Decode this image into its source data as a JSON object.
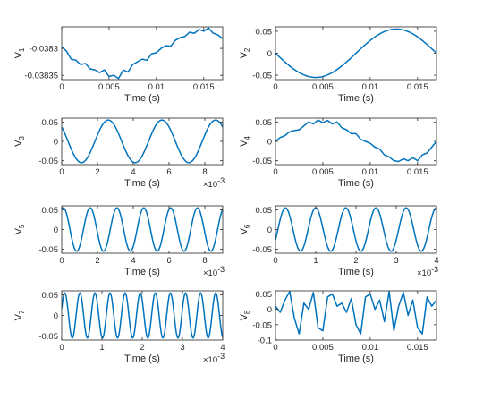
{
  "chart_data": [
    {
      "type": "line",
      "name": "V1",
      "ylabel_main": "V",
      "ylabel_sub": "1",
      "xlabel": "Time (s)",
      "xlim": [
        0,
        0.017
      ],
      "ylim": [
        -0.038358,
        -0.03826
      ],
      "xticks": [
        0,
        0.005,
        0.01,
        0.015
      ],
      "xtick_labels": [
        "0",
        "0.005",
        "0.01",
        "0.015"
      ],
      "yticks": [
        -0.0383,
        -0.03835
      ],
      "ytick_labels": [
        "-0.0383",
        "-0.03835"
      ],
      "x_exponent": "",
      "x": [
        0,
        0.0005,
        0.001,
        0.0015,
        0.002,
        0.0025,
        0.003,
        0.0035,
        0.004,
        0.0045,
        0.005,
        0.0055,
        0.006,
        0.0065,
        0.007,
        0.0075,
        0.008,
        0.0085,
        0.009,
        0.0095,
        0.01,
        0.0105,
        0.011,
        0.0115,
        0.012,
        0.0125,
        0.013,
        0.0135,
        0.014,
        0.0145,
        0.015,
        0.0155,
        0.016,
        0.0165,
        0.017
      ],
      "y": [
        -0.038297,
        -0.038305,
        -0.03832,
        -0.038322,
        -0.03833,
        -0.038328,
        -0.038338,
        -0.03834,
        -0.038345,
        -0.03834,
        -0.038352,
        -0.03835,
        -0.038356,
        -0.03834,
        -0.038344,
        -0.03833,
        -0.038325,
        -0.03832,
        -0.038322,
        -0.03831,
        -0.038308,
        -0.0383,
        -0.038295,
        -0.038296,
        -0.038285,
        -0.03828,
        -0.038278,
        -0.03827,
        -0.038272,
        -0.038265,
        -0.038268,
        -0.038262,
        -0.038272,
        -0.038275,
        -0.038282
      ]
    },
    {
      "type": "line",
      "name": "V2",
      "ylabel_main": "V",
      "ylabel_sub": "2",
      "xlabel": "Time (s)",
      "xlim": [
        0,
        0.017
      ],
      "ylim": [
        -0.06,
        0.06
      ],
      "xticks": [
        0,
        0.005,
        0.01,
        0.015
      ],
      "xtick_labels": [
        "0",
        "0.005",
        "0.01",
        "0.015"
      ],
      "yticks": [
        0.05,
        0,
        -0.05
      ],
      "ytick_labels": [
        "0.05",
        "0",
        "-0.05"
      ],
      "x_exponent": "",
      "func": {
        "amp": 0.055,
        "period": 0.017,
        "phase": 3.14159,
        "offset": 0
      }
    },
    {
      "type": "line",
      "name": "V3",
      "ylabel_main": "V",
      "ylabel_sub": "3",
      "xlabel": "Time (s)",
      "xlim": [
        0,
        9
      ],
      "ylim": [
        -0.06,
        0.06
      ],
      "xticks": [
        0,
        2,
        4,
        6,
        8
      ],
      "xtick_labels": [
        "0",
        "2",
        "4",
        "6",
        "8"
      ],
      "yticks": [
        0.05,
        0,
        -0.05
      ],
      "ytick_labels": [
        "0.05",
        "0",
        "-0.05"
      ],
      "x_exponent": "-3",
      "func": {
        "amp": 0.055,
        "period": 3.0,
        "phase": 2.4,
        "offset": 0
      }
    },
    {
      "type": "line",
      "name": "V4",
      "ylabel_main": "V",
      "ylabel_sub": "4",
      "xlabel": "Time (s)",
      "xlim": [
        0,
        0.017
      ],
      "ylim": [
        -0.06,
        0.06
      ],
      "xticks": [
        0,
        0.005,
        0.01,
        0.015
      ],
      "xtick_labels": [
        "0",
        "0.005",
        "0.01",
        "0.015"
      ],
      "yticks": [
        0.05,
        0,
        -0.05
      ],
      "ytick_labels": [
        "0.05",
        "0",
        "-0.05"
      ],
      "x_exponent": "",
      "x": [
        0,
        0.0005,
        0.001,
        0.0015,
        0.002,
        0.0025,
        0.003,
        0.0035,
        0.004,
        0.0045,
        0.005,
        0.0055,
        0.006,
        0.0065,
        0.007,
        0.0075,
        0.008,
        0.0085,
        0.009,
        0.0095,
        0.01,
        0.0105,
        0.011,
        0.0115,
        0.012,
        0.0125,
        0.013,
        0.0135,
        0.014,
        0.0145,
        0.015,
        0.0155,
        0.016,
        0.0165,
        0.017
      ],
      "y": [
        0.0,
        0.01,
        0.015,
        0.025,
        0.028,
        0.03,
        0.04,
        0.05,
        0.045,
        0.055,
        0.048,
        0.054,
        0.045,
        0.05,
        0.035,
        0.03,
        0.02,
        0.02,
        0.005,
        0.0,
        -0.005,
        -0.015,
        -0.02,
        -0.035,
        -0.04,
        -0.05,
        -0.052,
        -0.045,
        -0.05,
        -0.042,
        -0.05,
        -0.035,
        -0.03,
        -0.015,
        0.0
      ]
    },
    {
      "type": "line",
      "name": "V5",
      "ylabel_main": "V",
      "ylabel_sub": "5",
      "xlabel": "Time (s)",
      "xlim": [
        0,
        9
      ],
      "ylim": [
        -0.06,
        0.06
      ],
      "xticks": [
        0,
        2,
        4,
        6,
        8
      ],
      "xtick_labels": [
        "0",
        "2",
        "4",
        "6",
        "8"
      ],
      "yticks": [
        0.05,
        0,
        -0.05
      ],
      "ytick_labels": [
        "0.05",
        "0",
        "-0.05"
      ],
      "x_exponent": "-3",
      "func": {
        "amp": 0.055,
        "period": 1.5,
        "phase": 1.2,
        "offset": 0
      }
    },
    {
      "type": "line",
      "name": "V6",
      "ylabel_main": "V",
      "ylabel_sub": "6",
      "xlabel": "Time (s)",
      "xlim": [
        0,
        4
      ],
      "ylim": [
        -0.06,
        0.06
      ],
      "xticks": [
        0,
        1,
        2,
        3,
        4
      ],
      "xtick_labels": [
        "0",
        "1",
        "2",
        "3",
        "4"
      ],
      "yticks": [
        0.05,
        0,
        -0.05
      ],
      "ytick_labels": [
        "0.05",
        "0",
        "-0.05"
      ],
      "x_exponent": "-3",
      "func": {
        "amp": 0.055,
        "period": 0.75,
        "phase": -0.5,
        "offset": 0
      }
    },
    {
      "type": "line",
      "name": "V7",
      "ylabel_main": "V",
      "ylabel_sub": "7",
      "xlabel": "Time (s)",
      "xlim": [
        0,
        4
      ],
      "ylim": [
        -0.06,
        0.06
      ],
      "xticks": [
        0,
        1,
        2,
        3,
        4
      ],
      "xtick_labels": [
        "0",
        "1",
        "2",
        "3",
        "4"
      ],
      "yticks": [
        0.05,
        0,
        -0.05
      ],
      "ytick_labels": [
        "0.05",
        "0",
        "-0.05"
      ],
      "x_exponent": "-3",
      "func": {
        "amp": 0.055,
        "period": 0.375,
        "phase": 0.3,
        "offset": 0
      }
    },
    {
      "type": "line",
      "name": "V8",
      "ylabel_main": "V",
      "ylabel_sub": "8",
      "xlabel": "Time (s)",
      "xlim": [
        0,
        0.017
      ],
      "ylim": [
        -0.1,
        0.06
      ],
      "xticks": [
        0,
        0.005,
        0.01,
        0.015
      ],
      "xtick_labels": [
        "0",
        "0.005",
        "0.01",
        "0.015"
      ],
      "yticks": [
        0.05,
        0,
        -0.05,
        -0.1
      ],
      "ytick_labels": [
        "0.05",
        "0",
        "-0.05",
        "-0.1"
      ],
      "x_exponent": "",
      "x": [
        0,
        0.0005,
        0.001,
        0.0015,
        0.002,
        0.0025,
        0.003,
        0.0035,
        0.004,
        0.0045,
        0.005,
        0.0055,
        0.006,
        0.0065,
        0.007,
        0.0075,
        0.008,
        0.0085,
        0.009,
        0.0095,
        0.01,
        0.0105,
        0.011,
        0.0115,
        0.012,
        0.0125,
        0.013,
        0.0135,
        0.014,
        0.0145,
        0.015,
        0.0155,
        0.016,
        0.0165,
        0.017
      ],
      "y": [
        0.01,
        -0.01,
        0.03,
        0.058,
        -0.03,
        -0.08,
        0.02,
        0.0,
        0.055,
        -0.06,
        -0.07,
        0.04,
        0.05,
        0.01,
        0.02,
        -0.01,
        0.035,
        -0.05,
        -0.08,
        0.04,
        0.05,
        0.0,
        0.03,
        -0.04,
        0.058,
        -0.07,
        0.01,
        0.055,
        -0.02,
        0.03,
        -0.06,
        -0.08,
        0.04,
        0.01,
        0.03
      ]
    }
  ]
}
